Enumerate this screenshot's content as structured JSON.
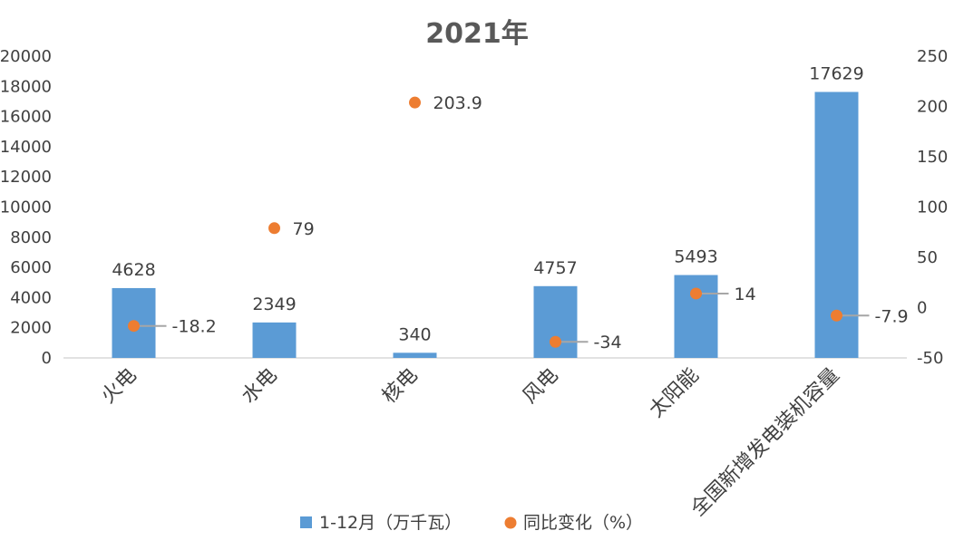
{
  "chart_data": {
    "type": "bar",
    "title": "2021年",
    "categories": [
      "火电",
      "水电",
      "核电",
      "风电",
      "太阳能",
      "全国新增发电装机容量"
    ],
    "series": [
      {
        "name": "1-12月（万千瓦）",
        "type": "bar",
        "axis": "left",
        "color": "#5B9BD5",
        "values": [
          4628,
          2349,
          340,
          4757,
          5493,
          17629
        ]
      },
      {
        "name": "同比变化（%）",
        "type": "scatter",
        "axis": "right",
        "color": "#ED7D31",
        "values": [
          -18.2,
          79,
          203.9,
          -34,
          14,
          -7.9
        ]
      }
    ],
    "bar_labels": [
      "4628",
      "2349",
      "340",
      "4757",
      "5493",
      "17629"
    ],
    "point_labels": [
      "-18.2",
      "79",
      "203.9",
      "-34",
      "14",
      "-7.9"
    ],
    "y_left": {
      "ylim": [
        0,
        20000
      ],
      "ticks": [
        "0",
        "2000",
        "4000",
        "6000",
        "8000",
        "10000",
        "12000",
        "14000",
        "16000",
        "18000",
        "20000"
      ]
    },
    "y_right": {
      "ylim": [
        -50,
        250
      ],
      "ticks": [
        "-50",
        "0",
        "50",
        "100",
        "150",
        "200",
        "250"
      ]
    },
    "grid": false,
    "legend": "bottom"
  }
}
